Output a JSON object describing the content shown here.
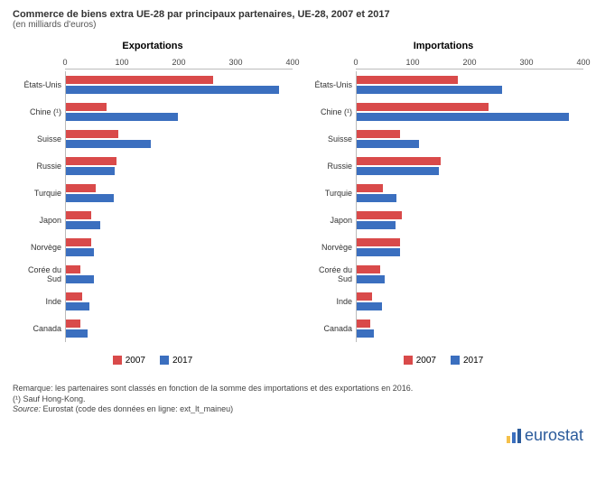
{
  "title": "Commerce de biens extra UE-28 par principaux partenaires, UE-28, 2007 et 2017",
  "subtitle": "(en milliards d'euros)",
  "xmax": 400,
  "ticks": [
    0,
    100,
    200,
    300,
    400
  ],
  "colors": {
    "y2007": "#d94a4a",
    "y2017": "#3b6fbf"
  },
  "categories": [
    "États-Unis",
    "Chine (¹)",
    "Suisse",
    "Russie",
    "Turquie",
    "Japon",
    "Norvège",
    "Corée du Sud",
    "Inde",
    "Canada"
  ],
  "series": [
    "2007",
    "2017"
  ],
  "panels": [
    {
      "title": "Exportations",
      "data": {
        "2007": [
          260,
          72,
          93,
          89,
          53,
          44,
          44,
          25,
          29,
          26
        ],
        "2017": [
          376,
          198,
          150,
          86,
          85,
          60,
          50,
          50,
          42,
          38
        ]
      }
    },
    {
      "title": "Importations",
      "data": {
        "2007": [
          178,
          233,
          77,
          148,
          47,
          79,
          77,
          41,
          27,
          24
        ],
        "2017": [
          257,
          375,
          110,
          145,
          70,
          69,
          77,
          50,
          44,
          31
        ]
      }
    }
  ],
  "footer": {
    "remark": "Remarque: les partenaires sont classés en fonction de la somme des importations et des exportations en 2016.",
    "note": "(¹) Sauf Hong-Kong.",
    "source_label": "Source:",
    "source": "Eurostat (code des données en ligne: ext_lt_maineu)"
  },
  "logo": "eurostat",
  "logo_colors": [
    "#f5c04a",
    "#3b6fbf",
    "#2b5b9b"
  ]
}
